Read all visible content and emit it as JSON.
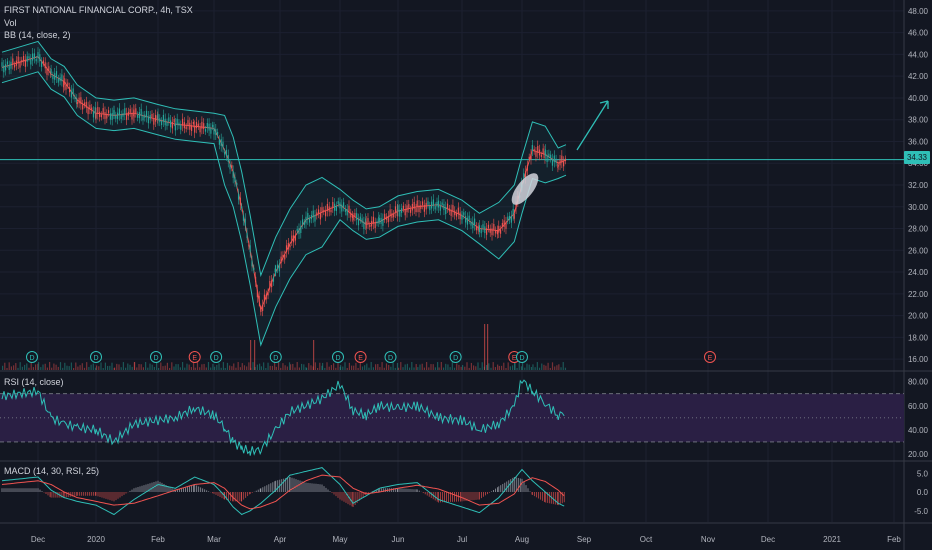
{
  "legend": {
    "symbol": "FIRST NATIONAL FINANCIAL CORP., 4h, TSX",
    "vol": "Vol",
    "bb": "BB (14, close, 2)",
    "rsi": "RSI (14, close)",
    "macd": "MACD (14, 30, RSI, 25)"
  },
  "last_price_label": "34.33",
  "colors": {
    "background": "#131722",
    "up": "#26a69a",
    "down": "#ef5350",
    "bb": "#2fbfb7",
    "bb_basis": "#ef5350",
    "rsi_line": "#2fbfb7",
    "rsi_band": "#2a1f44",
    "macd_line": "#2fbfb7",
    "signal_line": "#ef5350"
  },
  "chart_data": [
    {
      "type": "line",
      "title": "FIRST NATIONAL FINANCIAL CORP., 4h, TSX",
      "x_ticks": [
        "Dec",
        "2020",
        "Feb",
        "Mar",
        "Apr",
        "May",
        "Jun",
        "Jul",
        "Aug",
        "Sep",
        "Oct",
        "Nov",
        "Dec",
        "2021",
        "Feb"
      ],
      "y_ticks": [
        "48.00",
        "46.00",
        "44.00",
        "42.00",
        "40.00",
        "38.00",
        "36.00",
        "34.00",
        "32.00",
        "30.00",
        "28.00",
        "26.00",
        "24.00",
        "22.00",
        "20.00",
        "18.00",
        "16.00"
      ],
      "ylim": [
        15,
        49
      ],
      "horizontal_line": 34.33,
      "last_price": 34.33,
      "series": [
        {
          "name": "BB (14, close, 2)",
          "x": [
            "Nov 25",
            "Dec 1",
            "Dec 8",
            "Dec 15",
            "Dec 22",
            "Jan 1",
            "Jan 10",
            "Jan 20",
            "Feb 1",
            "Feb 10",
            "Feb 20",
            "Mar 1",
            "Mar 6",
            "Mar 10",
            "Mar 14",
            "Mar 18",
            "Mar 23",
            "Mar 30",
            "Apr 6",
            "Apr 14",
            "Apr 22",
            "May 1",
            "May 8",
            "May 15",
            "May 22",
            "Jun 1",
            "Jun 10",
            "Jun 20",
            "Jul 1",
            "Jul 10",
            "Jul 20",
            "Jul 28",
            "Aug 1",
            "Aug 5",
            "Aug 10",
            "Aug 15",
            "Aug 18"
          ],
          "values": [
            42.8,
            43.8,
            42.2,
            41.5,
            39.8,
            38.6,
            38.4,
            38.6,
            38.0,
            37.6,
            37.4,
            37.2,
            35.2,
            33.2,
            30.0,
            26.0,
            20.5,
            24.0,
            26.6,
            28.8,
            29.5,
            30.2,
            29.2,
            28.4,
            28.6,
            29.6,
            30.0,
            30.2,
            29.2,
            28.0,
            27.8,
            29.4,
            32.0,
            35.2,
            34.8,
            34.0,
            34.3
          ]
        }
      ],
      "events": [
        {
          "label": "D",
          "x": "Nov 30"
        },
        {
          "label": "D",
          "x": "Jan 1"
        },
        {
          "label": "D",
          "x": "Jan 31"
        },
        {
          "label": "E",
          "x": "Feb 20"
        },
        {
          "label": "D",
          "x": "Mar 2"
        },
        {
          "label": "D",
          "x": "Mar 30"
        },
        {
          "label": "D",
          "x": "Apr 30"
        },
        {
          "label": "E",
          "x": "May 12"
        },
        {
          "label": "D",
          "x": "May 28"
        },
        {
          "label": "D",
          "x": "Jun 28"
        },
        {
          "label": "E",
          "x": "Jul 28"
        },
        {
          "label": "D",
          "x": "Aug 1"
        },
        {
          "label": "E",
          "x": "Oct 30"
        }
      ]
    },
    {
      "type": "line",
      "title": "RSI (14, close)",
      "y_ticks": [
        "80.00",
        "60.00",
        "40.00",
        "20.00"
      ],
      "ylim": [
        15,
        88
      ],
      "band": [
        30,
        70
      ],
      "series": [
        {
          "name": "RSI (14, close)",
          "x": [
            "Nov 25",
            "Dec 1",
            "Dec 8",
            "Dec 15",
            "Dec 22",
            "Jan 1",
            "Jan 10",
            "Jan 20",
            "Feb 1",
            "Feb 10",
            "Feb 20",
            "Mar 1",
            "Mar 6",
            "Mar 10",
            "Mar 14",
            "Mar 18",
            "Mar 23",
            "Mar 30",
            "Apr 6",
            "Apr 14",
            "Apr 22",
            "May 1",
            "May 8",
            "May 15",
            "May 22",
            "Jun 1",
            "Jun 10",
            "Jun 20",
            "Jul 1",
            "Jul 10",
            "Jul 20",
            "Jul 28",
            "Aug 1",
            "Aug 5",
            "Aug 10",
            "Aug 15",
            "Aug 18"
          ],
          "values": [
            68,
            72,
            50,
            45,
            42,
            40,
            30,
            45,
            48,
            50,
            58,
            52,
            42,
            30,
            25,
            22,
            24,
            40,
            55,
            60,
            66,
            78,
            56,
            52,
            60,
            58,
            60,
            50,
            48,
            40,
            45,
            60,
            82,
            72,
            62,
            52,
            55
          ]
        }
      ]
    },
    {
      "type": "line",
      "title": "MACD (14, 30, RSI, 25)",
      "y_ticks": [
        "5.0",
        "0.0",
        "-5.0"
      ],
      "ylim": [
        -8,
        8
      ],
      "series": [
        {
          "name": "MACD",
          "x": [
            "Nov 25",
            "Dec 1",
            "Dec 8",
            "Dec 15",
            "Dec 22",
            "Jan 1",
            "Jan 10",
            "Jan 20",
            "Feb 1",
            "Feb 10",
            "Feb 20",
            "Mar 1",
            "Mar 6",
            "Mar 10",
            "Mar 14",
            "Mar 18",
            "Mar 23",
            "Mar 30",
            "Apr 6",
            "Apr 14",
            "Apr 22",
            "May 1",
            "May 8",
            "May 15",
            "May 22",
            "Jun 1",
            "Jun 10",
            "Jun 20",
            "Jul 1",
            "Jul 10",
            "Jul 20",
            "Jul 28",
            "Aug 1",
            "Aug 5",
            "Aug 10",
            "Aug 15",
            "Aug 18"
          ],
          "values": [
            3.0,
            4.0,
            0.5,
            -1.5,
            -2.5,
            -3.5,
            -6.0,
            -2.0,
            2.0,
            1.0,
            4.0,
            2.0,
            -1.0,
            -4.0,
            -6.0,
            -5.0,
            -3.0,
            0.5,
            4.5,
            5.5,
            6.5,
            2.0,
            -3.0,
            -1.0,
            1.0,
            2.0,
            2.5,
            -2.0,
            -4.0,
            -5.5,
            -1.5,
            3.5,
            6.0,
            3.0,
            0.0,
            -3.0,
            -4.0
          ]
        },
        {
          "name": "Signal",
          "x": [
            "Nov 25",
            "Dec 1",
            "Dec 8",
            "Dec 15",
            "Dec 22",
            "Jan 1",
            "Jan 10",
            "Jan 20",
            "Feb 1",
            "Feb 10",
            "Feb 20",
            "Mar 1",
            "Mar 6",
            "Mar 10",
            "Mar 14",
            "Mar 18",
            "Mar 23",
            "Mar 30",
            "Apr 6",
            "Apr 14",
            "Apr 22",
            "May 1",
            "May 8",
            "May 15",
            "May 22",
            "Jun 1",
            "Jun 10",
            "Jun 20",
            "Jul 1",
            "Jul 10",
            "Jul 20",
            "Jul 28",
            "Aug 1",
            "Aug 5",
            "Aug 10",
            "Aug 15",
            "Aug 18"
          ],
          "values": [
            2.0,
            3.0,
            2.0,
            0.0,
            -1.5,
            -2.5,
            -3.5,
            -3.0,
            -1.0,
            0.5,
            2.0,
            2.5,
            1.0,
            -1.5,
            -3.5,
            -4.5,
            -4.0,
            -2.5,
            0.5,
            3.0,
            4.5,
            4.0,
            1.0,
            -0.5,
            0.0,
            1.0,
            1.8,
            0.8,
            -1.5,
            -3.5,
            -3.0,
            -0.5,
            2.5,
            3.8,
            2.8,
            0.5,
            -1.5
          ]
        }
      ]
    }
  ]
}
